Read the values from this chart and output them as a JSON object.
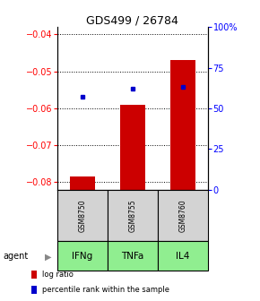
{
  "title": "GDS499 / 26784",
  "samples": [
    "GSM8750",
    "GSM8755",
    "GSM8760"
  ],
  "agents": [
    "IFNg",
    "TNFa",
    "IL4"
  ],
  "log_ratios": [
    -0.0785,
    -0.059,
    -0.047
  ],
  "percentile_ranks": [
    57,
    62,
    63
  ],
  "ylim_left": [
    -0.082,
    -0.038
  ],
  "ylim_right": [
    0,
    100
  ],
  "yticks_left": [
    -0.08,
    -0.07,
    -0.06,
    -0.05,
    -0.04
  ],
  "yticks_right": [
    0,
    25,
    50,
    75,
    100
  ],
  "bar_color": "#cc0000",
  "dot_color": "#0000cc",
  "agent_bg_color": "#90ee90",
  "sample_bg_color": "#d3d3d3",
  "legend_bar_color": "#cc0000",
  "legend_dot_color": "#0000cc",
  "legend_bar_label": "log ratio",
  "legend_dot_label": "percentile rank within the sample",
  "agent_label": "agent"
}
